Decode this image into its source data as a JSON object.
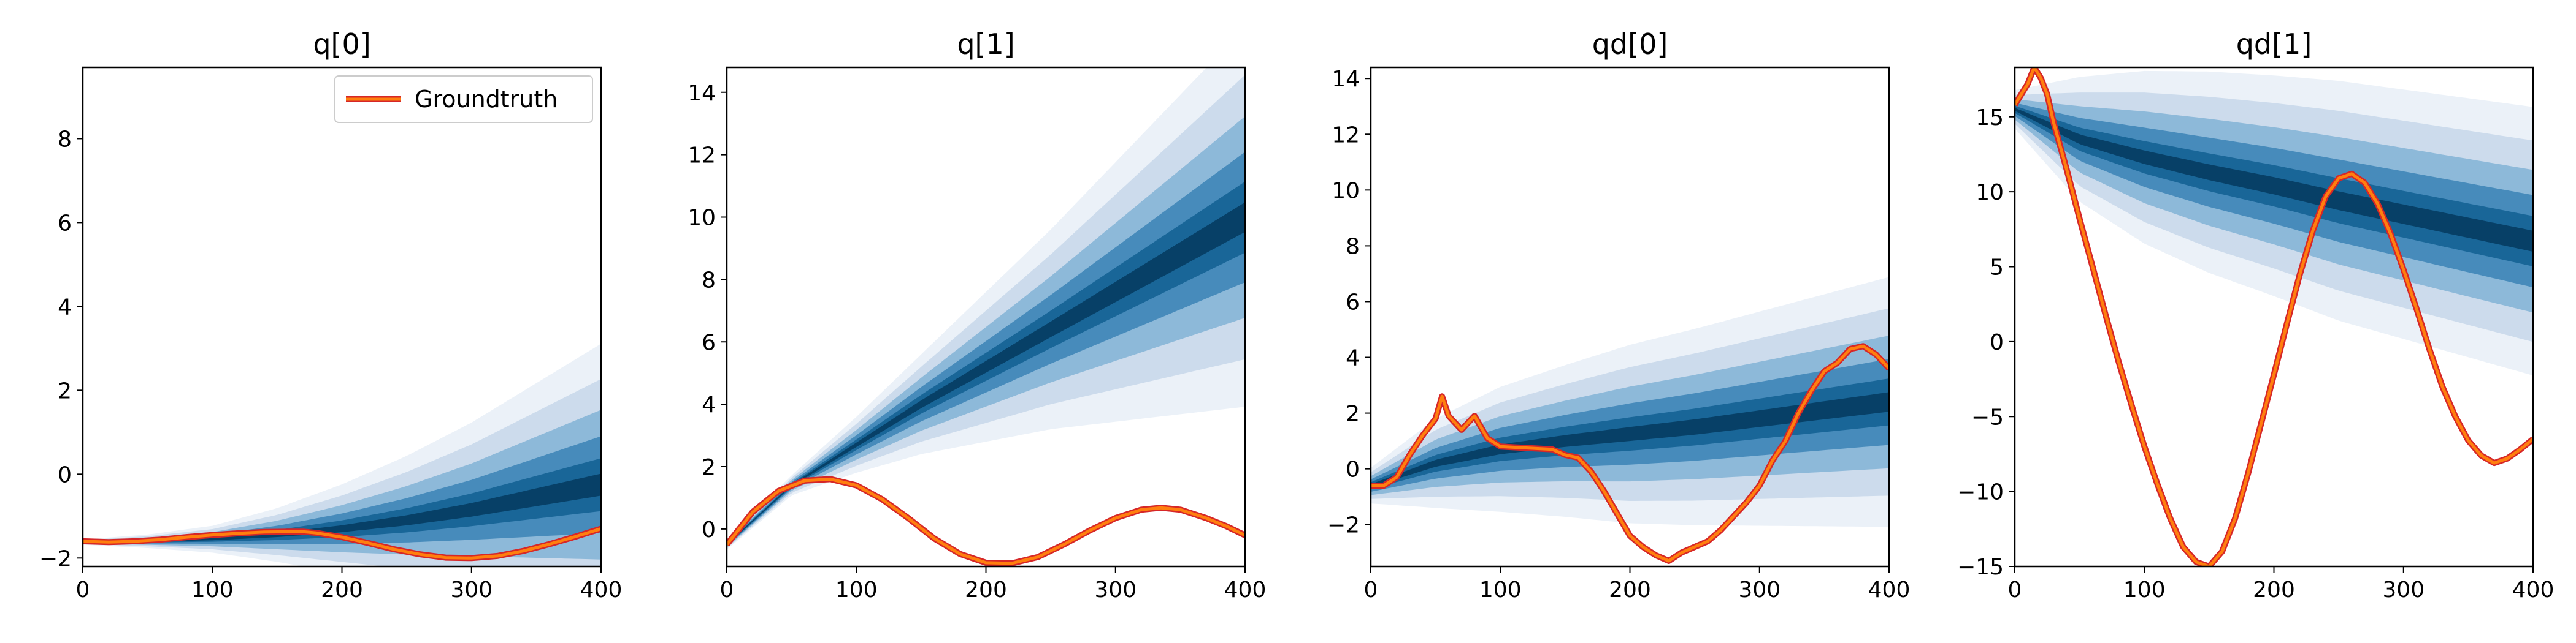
{
  "chart_data": [
    {
      "type": "area",
      "title": "q[0]",
      "xlabel": "",
      "ylabel": "",
      "xlim": [
        0,
        400
      ],
      "ylim": [
        -2.2,
        9.7
      ],
      "xticks": [
        0,
        100,
        200,
        300,
        400
      ],
      "yticks": [
        -2,
        0,
        2,
        4,
        6,
        8
      ],
      "legend": {
        "position": "top-right",
        "entries": [
          "Groundtruth"
        ]
      },
      "series": [
        {
          "name": "Groundtruth",
          "color": "#ff7f0e",
          "x": [
            0,
            20,
            40,
            60,
            80,
            100,
            120,
            140,
            160,
            170,
            180,
            200,
            220,
            240,
            260,
            280,
            300,
            320,
            340,
            360,
            380,
            400
          ],
          "y": [
            -1.6,
            -1.62,
            -1.6,
            -1.56,
            -1.5,
            -1.45,
            -1.41,
            -1.38,
            -1.37,
            -1.37,
            -1.4,
            -1.5,
            -1.64,
            -1.79,
            -1.91,
            -1.99,
            -2.0,
            -1.95,
            -1.83,
            -1.67,
            -1.49,
            -1.3
          ]
        }
      ],
      "density": {
        "colormap": "PuBu",
        "x": [
          0,
          50,
          100,
          150,
          200,
          250,
          300,
          350,
          400
        ],
        "mean": [
          -1.62,
          -1.6,
          -1.55,
          -1.45,
          -1.3,
          -1.1,
          -0.85,
          -0.55,
          -0.25
        ],
        "spread": [
          0.02,
          0.05,
          0.1,
          0.2,
          0.33,
          0.48,
          0.65,
          0.85,
          1.05
        ]
      }
    },
    {
      "type": "area",
      "title": "q[1]",
      "xlabel": "",
      "ylabel": "",
      "xlim": [
        0,
        400
      ],
      "ylim": [
        -1.2,
        14.8
      ],
      "xticks": [
        0,
        100,
        200,
        300,
        400
      ],
      "yticks": [
        0,
        2,
        4,
        6,
        8,
        10,
        12,
        14
      ],
      "series": [
        {
          "name": "Groundtruth",
          "color": "#ff7f0e",
          "x": [
            0,
            20,
            40,
            60,
            80,
            100,
            120,
            140,
            160,
            180,
            200,
            220,
            240,
            260,
            280,
            300,
            320,
            335,
            350,
            370,
            385,
            400
          ],
          "y": [
            -0.5,
            0.55,
            1.22,
            1.55,
            1.6,
            1.4,
            0.95,
            0.35,
            -0.3,
            -0.8,
            -1.08,
            -1.1,
            -0.9,
            -0.5,
            -0.05,
            0.35,
            0.62,
            0.68,
            0.62,
            0.35,
            0.1,
            -0.2
          ]
        }
      ],
      "density": {
        "colormap": "PuBu",
        "x": [
          0,
          50,
          100,
          150,
          200,
          250,
          300,
          350,
          400
        ],
        "mean": [
          -0.5,
          1.4,
          2.7,
          4.0,
          5.2,
          6.4,
          7.6,
          8.8,
          10.0
        ],
        "spread": [
          0.05,
          0.1,
          0.28,
          0.5,
          0.75,
          1.0,
          1.3,
          1.6,
          1.9
        ]
      }
    },
    {
      "type": "area",
      "title": "qd[0]",
      "xlabel": "",
      "ylabel": "",
      "xlim": [
        0,
        400
      ],
      "ylim": [
        -3.5,
        14.4
      ],
      "xticks": [
        0,
        100,
        200,
        300,
        400
      ],
      "yticks": [
        -2,
        0,
        2,
        4,
        6,
        8,
        10,
        12,
        14
      ],
      "series": [
        {
          "name": "Groundtruth",
          "color": "#ff7f0e",
          "x": [
            0,
            10,
            20,
            30,
            40,
            50,
            55,
            60,
            70,
            80,
            90,
            100,
            120,
            140,
            150,
            160,
            170,
            180,
            190,
            200,
            210,
            220,
            230,
            240,
            250,
            260,
            270,
            280,
            290,
            300,
            310,
            320,
            330,
            340,
            350,
            360,
            370,
            380,
            390,
            400
          ],
          "y": [
            -0.6,
            -0.6,
            -0.3,
            0.5,
            1.2,
            1.8,
            2.6,
            1.9,
            1.4,
            1.9,
            1.1,
            0.8,
            0.75,
            0.7,
            0.5,
            0.4,
            -0.1,
            -0.8,
            -1.6,
            -2.4,
            -2.8,
            -3.1,
            -3.3,
            -3.0,
            -2.8,
            -2.6,
            -2.2,
            -1.7,
            -1.2,
            -0.6,
            0.3,
            1.0,
            2.0,
            2.8,
            3.5,
            3.8,
            4.3,
            4.4,
            4.1,
            3.6
          ]
        }
      ],
      "density": {
        "colormap": "PuBu",
        "x": [
          0,
          50,
          100,
          150,
          200,
          250,
          300,
          350,
          400
        ],
        "mean": [
          -0.6,
          0.2,
          0.7,
          1.0,
          1.25,
          1.5,
          1.8,
          2.1,
          2.4
        ],
        "spread": [
          0.2,
          0.5,
          0.7,
          0.85,
          1.0,
          1.1,
          1.2,
          1.3,
          1.4
        ]
      }
    },
    {
      "type": "area",
      "title": "qd[1]",
      "xlabel": "",
      "ylabel": "",
      "xlim": [
        0,
        400
      ],
      "ylim": [
        -15,
        18.3
      ],
      "xticks": [
        0,
        100,
        200,
        300,
        400
      ],
      "yticks": [
        -15,
        -10,
        -5,
        0,
        5,
        10,
        15
      ],
      "series": [
        {
          "name": "Groundtruth",
          "color": "#ff7f0e",
          "x": [
            0,
            10,
            15,
            20,
            25,
            30,
            40,
            50,
            60,
            70,
            80,
            90,
            100,
            110,
            120,
            130,
            140,
            150,
            160,
            170,
            180,
            190,
            200,
            210,
            220,
            230,
            240,
            250,
            260,
            270,
            280,
            290,
            300,
            310,
            320,
            330,
            340,
            350,
            360,
            370,
            380,
            390,
            400
          ],
          "y": [
            15.8,
            17.2,
            18.3,
            17.6,
            16.5,
            14.6,
            11.5,
            8.2,
            5.0,
            1.8,
            -1.3,
            -4.2,
            -7.0,
            -9.5,
            -11.8,
            -13.7,
            -14.7,
            -15.0,
            -14.0,
            -11.8,
            -8.8,
            -5.5,
            -2.2,
            1.2,
            4.5,
            7.4,
            9.7,
            10.9,
            11.2,
            10.6,
            9.2,
            7.2,
            4.8,
            2.2,
            -0.5,
            -3.0,
            -5.0,
            -6.6,
            -7.6,
            -8.1,
            -7.8,
            -7.2,
            -6.5
          ]
        }
      ],
      "density": {
        "colormap": "PuBu",
        "x": [
          0,
          50,
          100,
          150,
          200,
          250,
          300,
          350,
          400
        ],
        "mean": [
          15.5,
          13.5,
          12.3,
          11.3,
          10.4,
          9.4,
          8.5,
          7.6,
          6.7
        ],
        "spread": [
          0.4,
          1.3,
          1.8,
          2.1,
          2.3,
          2.5,
          2.6,
          2.7,
          2.8
        ]
      }
    }
  ]
}
